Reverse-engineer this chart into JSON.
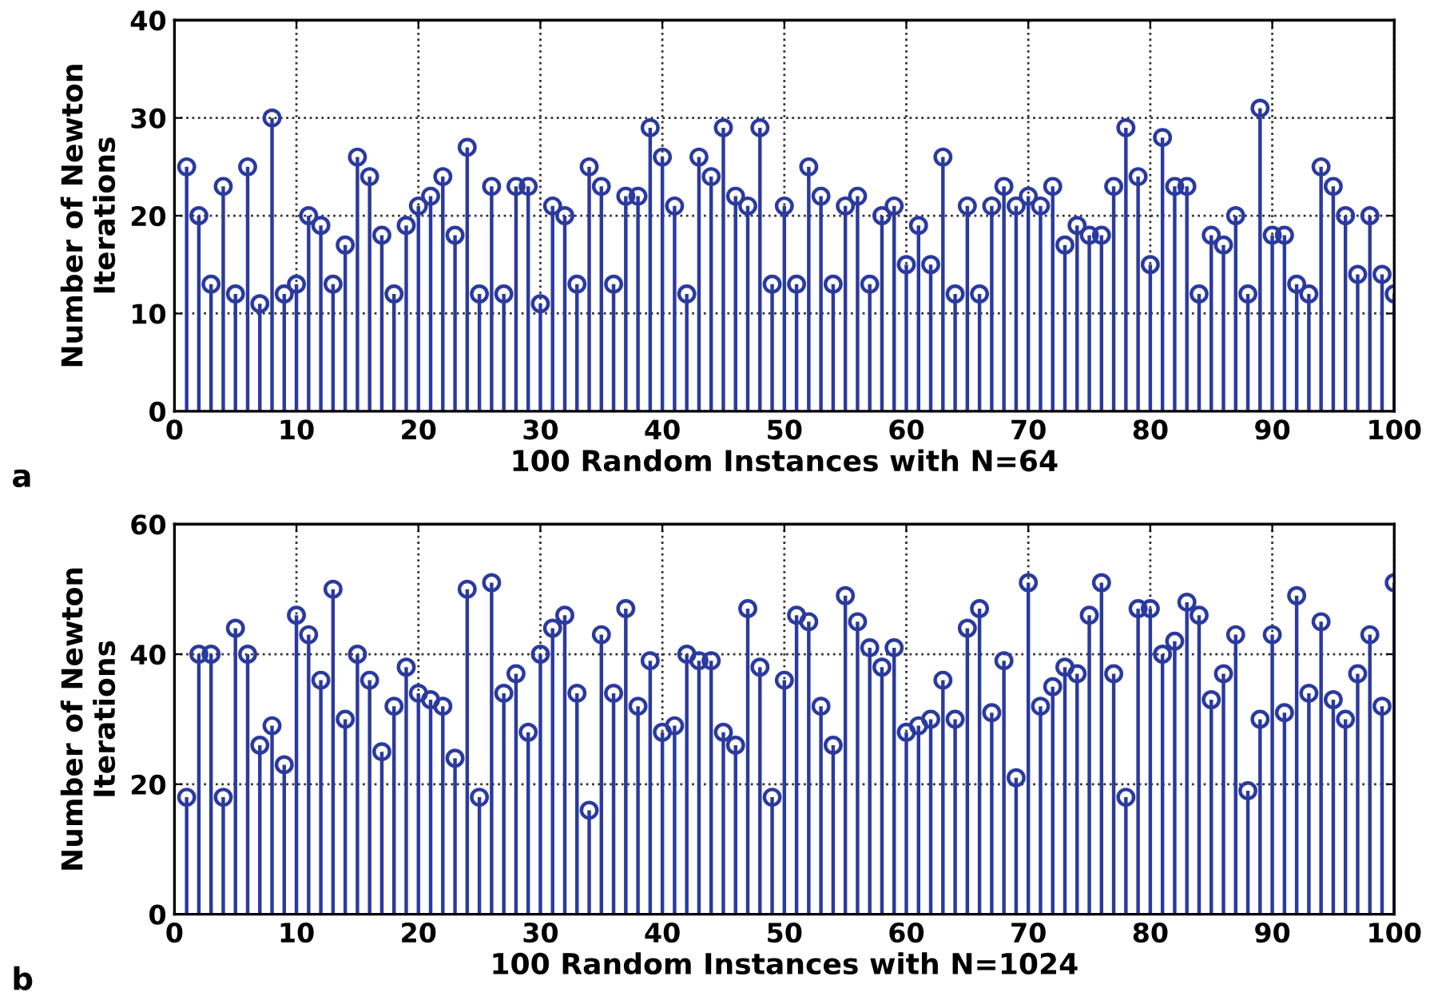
{
  "chart_data": [
    {
      "type": "lollipop",
      "xlabel": "100 Random Instances with N=64",
      "ylabel": "Number of Newton\nIterations",
      "annotations": [
        "a"
      ],
      "x": [
        1,
        2,
        3,
        4,
        5,
        6,
        7,
        8,
        9,
        10,
        11,
        12,
        13,
        14,
        15,
        16,
        17,
        18,
        19,
        20,
        21,
        22,
        23,
        24,
        25,
        26,
        27,
        28,
        29,
        30,
        31,
        32,
        33,
        34,
        35,
        36,
        37,
        38,
        39,
        40,
        41,
        42,
        43,
        44,
        45,
        46,
        47,
        48,
        49,
        50,
        51,
        52,
        53,
        54,
        55,
        56,
        57,
        58,
        59,
        60,
        61,
        62,
        63,
        64,
        65,
        66,
        67,
        68,
        69,
        70,
        71,
        72,
        73,
        74,
        75,
        76,
        77,
        78,
        79,
        80,
        81,
        82,
        83,
        84,
        85,
        86,
        87,
        88,
        89,
        90,
        91,
        92,
        93,
        94,
        95,
        96,
        97,
        98,
        99,
        100
      ],
      "series": [
        {
          "color": "#2b3a9e",
          "values": [
            25,
            20,
            13,
            23,
            12,
            25,
            11,
            30,
            12,
            13,
            20,
            19,
            13,
            17,
            26,
            24,
            18,
            12,
            19,
            21,
            22,
            24,
            18,
            27,
            12,
            23,
            12,
            23,
            23,
            11,
            21,
            20,
            13,
            25,
            23,
            13,
            22,
            22,
            29,
            26,
            21,
            12,
            26,
            24,
            29,
            22,
            21,
            29,
            13,
            21,
            13,
            25,
            22,
            13,
            21,
            22,
            13,
            20,
            21,
            15,
            19,
            15,
            26,
            12,
            21,
            12,
            21,
            23,
            21,
            22,
            21,
            23,
            17,
            19,
            18,
            18,
            23,
            29,
            24,
            15,
            28,
            23,
            23,
            12,
            18,
            17,
            20,
            12,
            31,
            18,
            18,
            13,
            12,
            25,
            23,
            20,
            14,
            20,
            14,
            12
          ]
        }
      ],
      "xlim": [
        0,
        100
      ],
      "xticks": [
        0,
        10,
        20,
        30,
        40,
        50,
        60,
        70,
        80,
        90,
        100
      ],
      "ylim": [
        0,
        40
      ],
      "yticks": [
        0,
        10,
        20,
        30,
        40
      ],
      "grid": true,
      "marker": "circle",
      "line_style": "solid"
    },
    {
      "type": "lollipop",
      "xlabel": "100 Random Instances with N=1024",
      "ylabel": "Number of Newton\nIterations",
      "annotations": [
        "b"
      ],
      "x": [
        1,
        2,
        3,
        4,
        5,
        6,
        7,
        8,
        9,
        10,
        11,
        12,
        13,
        14,
        15,
        16,
        17,
        18,
        19,
        20,
        21,
        22,
        23,
        24,
        25,
        26,
        27,
        28,
        29,
        30,
        31,
        32,
        33,
        34,
        35,
        36,
        37,
        38,
        39,
        40,
        41,
        42,
        43,
        44,
        45,
        46,
        47,
        48,
        49,
        50,
        51,
        52,
        53,
        54,
        55,
        56,
        57,
        58,
        59,
        60,
        61,
        62,
        63,
        64,
        65,
        66,
        67,
        68,
        69,
        70,
        71,
        72,
        73,
        74,
        75,
        76,
        77,
        78,
        79,
        80,
        81,
        82,
        83,
        84,
        85,
        86,
        87,
        88,
        89,
        90,
        91,
        92,
        93,
        94,
        95,
        96,
        97,
        98,
        99,
        100
      ],
      "series": [
        {
          "color": "#2b3a9e",
          "values": [
            18,
            40,
            40,
            18,
            44,
            40,
            26,
            29,
            23,
            46,
            43,
            36,
            50,
            30,
            40,
            36,
            25,
            32,
            38,
            34,
            33,
            32,
            24,
            50,
            18,
            51,
            34,
            37,
            28,
            40,
            44,
            46,
            34,
            16,
            43,
            34,
            47,
            32,
            39,
            28,
            29,
            40,
            39,
            39,
            28,
            26,
            47,
            38,
            18,
            36,
            46,
            45,
            32,
            26,
            49,
            45,
            41,
            38,
            41,
            28,
            29,
            30,
            36,
            30,
            44,
            47,
            31,
            39,
            21,
            51,
            32,
            35,
            38,
            37,
            46,
            51,
            37,
            18,
            47,
            47,
            40,
            42,
            48,
            46,
            33,
            37,
            43,
            19,
            30,
            43,
            31,
            49,
            34,
            45,
            33,
            30,
            37,
            43,
            32,
            51
          ]
        }
      ],
      "xlim": [
        0,
        100
      ],
      "xticks": [
        0,
        10,
        20,
        30,
        40,
        50,
        60,
        70,
        80,
        90,
        100
      ],
      "ylim": [
        0,
        60
      ],
      "yticks": [
        0,
        20,
        40,
        60
      ],
      "grid": true,
      "marker": "circle",
      "line_style": "solid"
    }
  ]
}
